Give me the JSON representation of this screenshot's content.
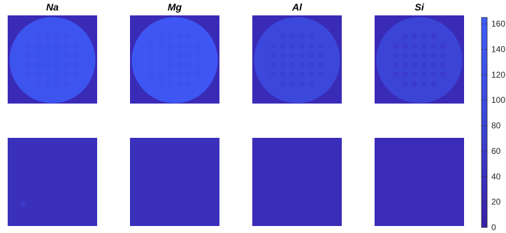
{
  "chart_data": {
    "type": "heatmap",
    "panels": [
      {
        "row": 0,
        "col": 0,
        "title": "Na",
        "background": 25,
        "disk": 132,
        "dot": 118
      },
      {
        "row": 0,
        "col": 1,
        "title": "Mg",
        "background": 25,
        "disk": 142,
        "dot": 126
      },
      {
        "row": 0,
        "col": 2,
        "title": "Al",
        "background": 25,
        "disk": 88,
        "dot": 72
      },
      {
        "row": 0,
        "col": 3,
        "title": "Si",
        "background": 25,
        "disk": 78,
        "dot": 62
      },
      {
        "row": 1,
        "col": 0,
        "title": "",
        "background": 35,
        "spot": 60
      },
      {
        "row": 1,
        "col": 1,
        "title": "",
        "background": 35
      },
      {
        "row": 1,
        "col": 2,
        "title": "",
        "background": 30
      },
      {
        "row": 1,
        "col": 3,
        "title": "",
        "background": 28
      }
    ],
    "dot_grid": {
      "rows": 6,
      "cols": 6,
      "skip_corners": true
    },
    "colorbar": {
      "min": 0,
      "max": 165,
      "ticks": [
        0,
        20,
        40,
        60,
        80,
        100,
        120,
        140,
        160
      ],
      "colors": {
        "low": "#3a1fa8",
        "mid": "#3b46d8",
        "high": "#3f5eff"
      }
    }
  }
}
